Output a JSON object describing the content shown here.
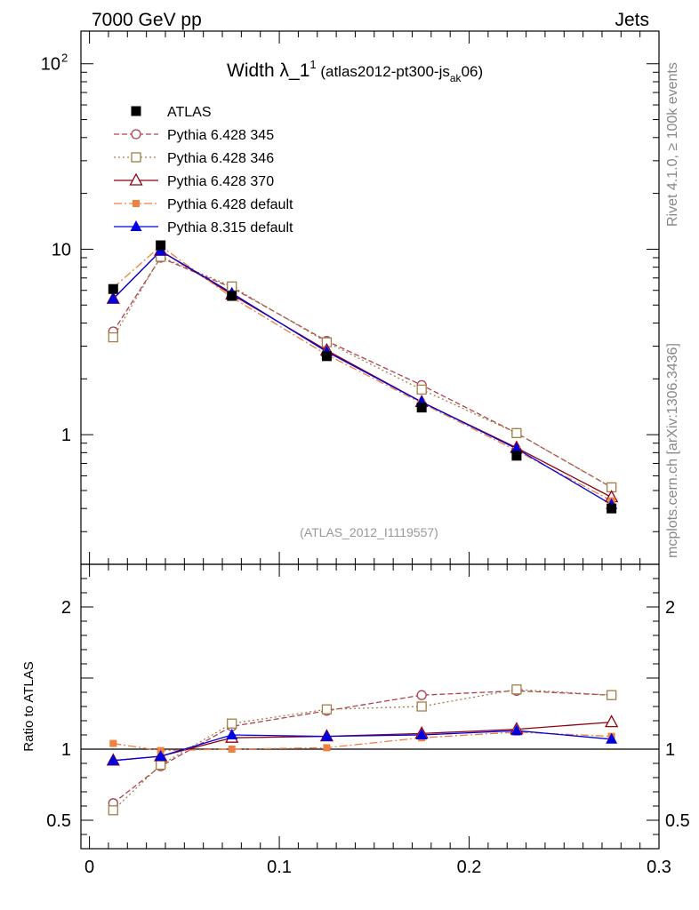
{
  "header": {
    "left": "7000 GeV pp",
    "right": "Jets"
  },
  "title": {
    "main": "Width λ_1",
    "sup": "1",
    "paren_open": " (atlas2012-pt300-js",
    "sub": "ak",
    "paren_close": "06)"
  },
  "side_labels": {
    "rivet": "Rivet 4.1.0, ≥ 100k events",
    "mcplots": "mcplots.cern.ch [arXiv:1306.3436]"
  },
  "analysis_id": "(ATLAS_2012_I1119557)",
  "ratio_ylabel": "Ratio to ATLAS",
  "colors": {
    "atlas": "#000000",
    "p345": "#b04050",
    "p346": "#a08048",
    "p370": "#900010",
    "pdefault": "#f08040",
    "p8": "#0000e0"
  },
  "chart_data": {
    "type": "line",
    "x": [
      0.0125,
      0.0375,
      0.075,
      0.125,
      0.175,
      0.225,
      0.275
    ],
    "xlim": [
      -0.0045,
      0.3
    ],
    "main": {
      "yscale": "log",
      "ylim": [
        0.2,
        150
      ],
      "yticks": [
        {
          "value": 1,
          "label": "1"
        },
        {
          "value": 10,
          "label": "10"
        },
        {
          "value": 100,
          "label": "10",
          "sup": "2"
        }
      ]
    },
    "ratio": {
      "ylim": [
        0.3,
        2.3
      ],
      "yticks": [
        {
          "value": 0.5,
          "label": "0.5"
        },
        {
          "value": 1,
          "label": "1"
        },
        {
          "value": 2,
          "label": "2"
        }
      ]
    },
    "xticks": [
      {
        "value": 0,
        "label": "0"
      },
      {
        "value": 0.1,
        "label": "0.1"
      },
      {
        "value": 0.2,
        "label": "0.2"
      },
      {
        "value": 0.3,
        "label": "0.3"
      }
    ],
    "series": [
      {
        "name": "ATLAS",
        "key": "atlas",
        "marker": "square-filled",
        "line": "none",
        "values": [
          6.1,
          10.5,
          5.6,
          2.65,
          1.4,
          0.77,
          0.4
        ],
        "ratio": [
          1,
          1,
          1,
          1,
          1,
          1,
          1
        ]
      },
      {
        "name": "Pythia 6.428 345",
        "key": "p345",
        "marker": "circle-open",
        "line": "dashed",
        "values": [
          3.6,
          9.0,
          6.2,
          3.2,
          1.85,
          1.02,
          0.52
        ],
        "ratio": [
          0.62,
          0.88,
          1.16,
          1.27,
          1.38,
          1.41,
          1.38
        ]
      },
      {
        "name": "Pythia 6.428 346",
        "key": "p346",
        "marker": "square-open",
        "line": "dotted",
        "values": [
          3.35,
          9.1,
          6.3,
          3.15,
          1.75,
          1.02,
          0.52
        ],
        "ratio": [
          0.57,
          0.89,
          1.18,
          1.28,
          1.3,
          1.42,
          1.38
        ]
      },
      {
        "name": "Pythia 6.428 370",
        "key": "p370",
        "marker": "triangle-open",
        "line": "solid",
        "values": [
          5.4,
          9.8,
          5.7,
          2.85,
          1.5,
          0.85,
          0.46
        ],
        "ratio": [
          0.92,
          0.95,
          1.08,
          1.09,
          1.11,
          1.14,
          1.19
        ]
      },
      {
        "name": "Pythia 6.428 default",
        "key": "pdefault",
        "marker": "square-filled-small",
        "line": "dashdot",
        "values": [
          6.2,
          10.4,
          5.5,
          2.7,
          1.48,
          0.82,
          0.44
        ],
        "ratio": [
          1.04,
          0.99,
          1.0,
          1.01,
          1.08,
          1.12,
          1.09
        ]
      },
      {
        "name": "Pythia 8.315 default",
        "key": "p8",
        "marker": "triangle-filled",
        "line": "solid",
        "values": [
          5.4,
          9.8,
          5.8,
          2.8,
          1.5,
          0.84,
          0.42
        ],
        "ratio": [
          0.92,
          0.95,
          1.1,
          1.09,
          1.1,
          1.13,
          1.07
        ]
      }
    ]
  }
}
